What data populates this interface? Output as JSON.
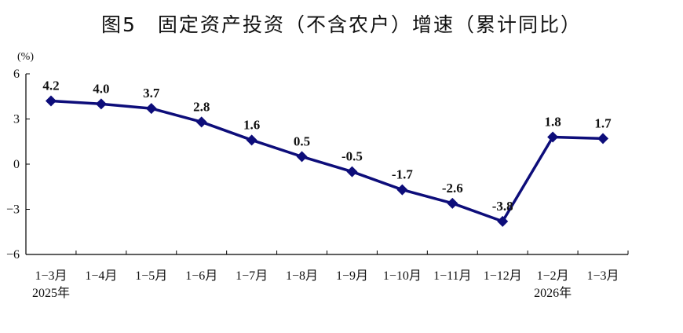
{
  "chart_data": {
    "type": "line",
    "title": "图5　固定资产投资（不含农户）增速（累计同比）",
    "unit": "(%)",
    "categories": [
      "1−3月",
      "1−4月",
      "1−5月",
      "1−6月",
      "1−7月",
      "1−8月",
      "1−9月",
      "1−10月",
      "1−11月",
      "1−12月",
      "1−2月",
      "1−3月"
    ],
    "year_labels": [
      {
        "category_index": 0,
        "text": "2025年"
      },
      {
        "category_index": 10,
        "text": "2026年"
      }
    ],
    "series": [
      {
        "values": [
          4.2,
          4.0,
          3.7,
          2.8,
          1.6,
          0.5,
          -0.5,
          -1.7,
          -2.6,
          -3.8,
          1.8,
          1.7
        ],
        "data_labels": [
          "4.2",
          "4.0",
          "3.7",
          "2.8",
          "1.6",
          "0.5",
          "-0.5",
          "-1.7",
          "-2.6",
          "-3.8",
          "1.8",
          "1.7"
        ]
      }
    ],
    "ylim": [
      -6,
      6
    ],
    "yticks": [
      6,
      3,
      0,
      -3,
      -6
    ],
    "ytick_labels": [
      "6",
      "3",
      "0",
      "−3",
      "−6"
    ],
    "grid": false,
    "legend": "none",
    "line_color": "#0d0d7a",
    "marker": "diamond"
  }
}
